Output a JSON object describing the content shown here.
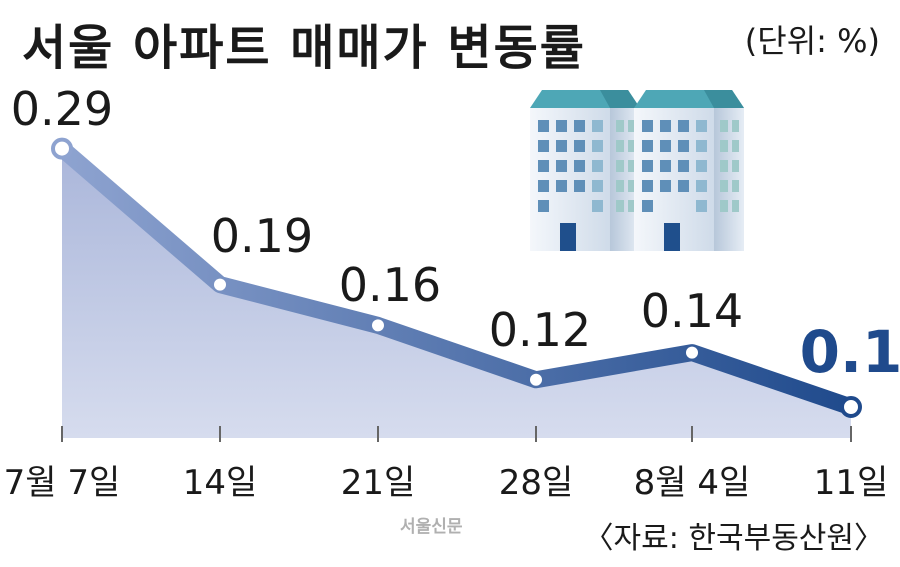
{
  "header": {
    "title": "서울 아파트 매매가 변동률",
    "unit": "(단위: %)"
  },
  "footer": {
    "source": "〈자료: 한국부동산원〉",
    "credit": "서울신문"
  },
  "colors": {
    "area": "#c5cde3",
    "line_start": "#8ea3d0",
    "line_end": "#1f4a8c",
    "highlight": "#1f4a8c"
  },
  "chart_data": {
    "type": "area",
    "categories": [
      "7월 7일",
      "14일",
      "21일",
      "28일",
      "8월 4일",
      "11일"
    ],
    "values": [
      0.29,
      0.19,
      0.16,
      0.12,
      0.14,
      0.1
    ],
    "value_labels": [
      "0.29",
      "0.19",
      "0.16",
      "0.12",
      "0.14",
      "0.1"
    ],
    "highlight_last": true,
    "grid": false
  }
}
